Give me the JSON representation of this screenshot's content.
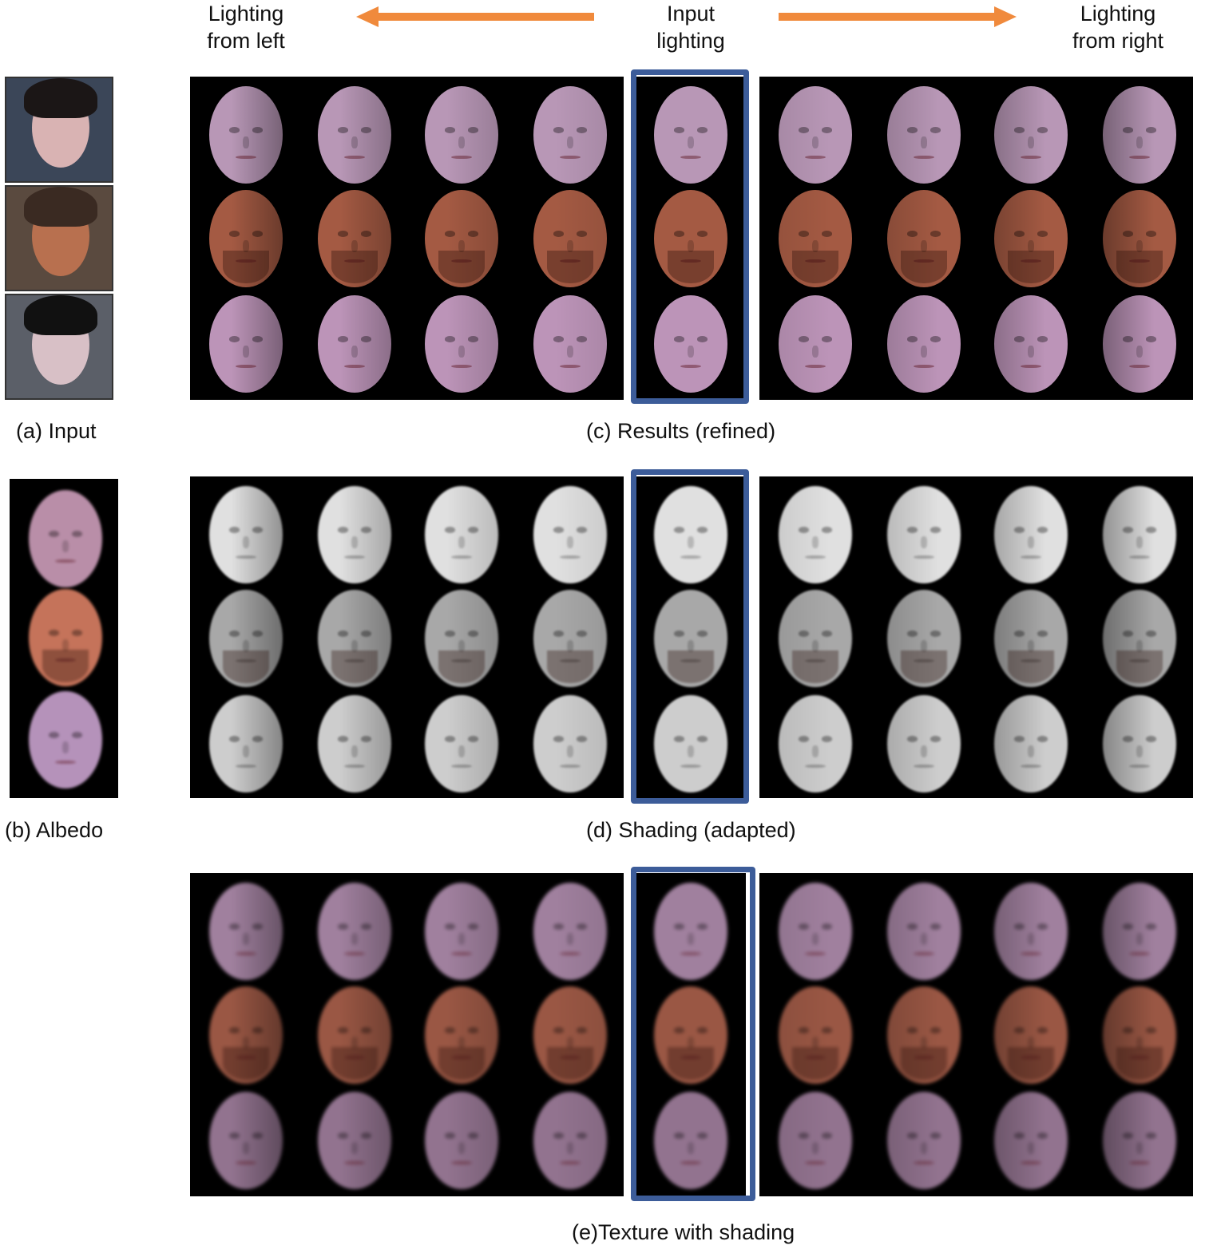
{
  "header": {
    "left_label": "Lighting\nfrom left",
    "center_label": "Input\nlighting",
    "right_label": "Lighting\nfrom right",
    "arrow_color": "#f08a3c",
    "highlight_color": "#3c5c99"
  },
  "captions": {
    "a": "(a) Input",
    "b": "(b) Albedo",
    "c": "(c) Results (refined)",
    "d": "(d) Shading (adapted)",
    "e": "(e)Texture with shading"
  },
  "subjects": [
    {
      "name": "woman-1",
      "skin": "#c8a3c2"
    },
    {
      "name": "man-beard",
      "skin": "#c46a4f"
    },
    {
      "name": "woman-2",
      "skin": "#c8a0c4"
    }
  ],
  "grids": {
    "results": [
      "#b897b6",
      "#a45a43",
      "#bc94b8"
    ],
    "shading": [
      "#e0e0e0",
      "#a8a8a8",
      "#cdcdcd"
    ],
    "texture": [
      "#a0809e",
      "#9a5744",
      "#92738f"
    ]
  },
  "albedo_colors": [
    "#b98ea8",
    "#c5735a",
    "#b592ba"
  ]
}
